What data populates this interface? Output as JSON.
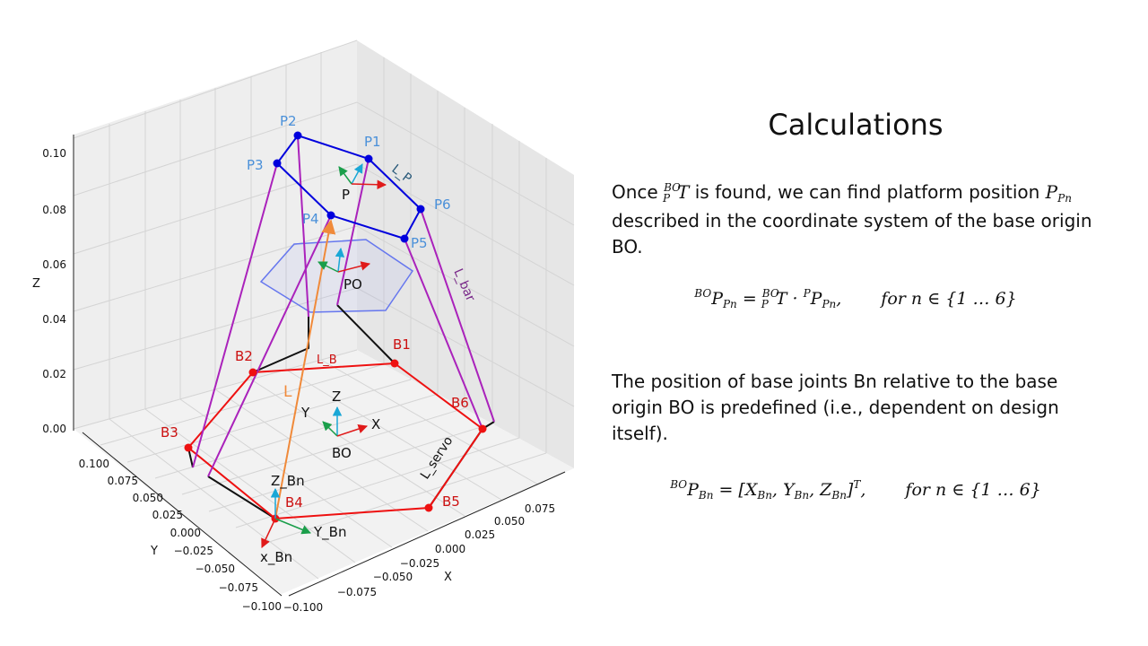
{
  "diagram": {
    "z_label": "Z",
    "y_label": "Y",
    "x_label": "X",
    "z_ticks": [
      "0.00",
      "0.02",
      "0.04",
      "0.06",
      "0.08",
      "0.10"
    ],
    "y_ticks": [
      "0.100",
      "0.075",
      "0.050",
      "0.025",
      "0.000",
      "−0.025",
      "−0.050",
      "−0.075",
      "−0.100"
    ],
    "x_ticks": [
      "−0.100",
      "−0.075",
      "−0.050",
      "−0.025",
      "0.000",
      "0.025",
      "0.050",
      "0.075"
    ],
    "platform_points": [
      "P1",
      "P2",
      "P3",
      "P4",
      "P5",
      "P6"
    ],
    "base_points": [
      "B1",
      "B2",
      "B3",
      "B4",
      "B5",
      "B6"
    ],
    "frame_labels": {
      "p": "P",
      "po": "PO",
      "bo": "BO",
      "bo_z": "Z",
      "bo_y": "Y",
      "bo_x": "X",
      "bn_z": "Z_Bn",
      "bn_y": "Y_Bn",
      "bn_x": "x_Bn"
    },
    "link_labels": {
      "l_p": "L_P",
      "l_bar": "L_bar",
      "l_b": "L_B",
      "l": "L",
      "l_servo": "L_servo"
    },
    "colors": {
      "platform": "#0000dd",
      "platform_label": "#4a90d9",
      "base": "#ee1111",
      "base_label": "#cc1111",
      "rod": "#aa22bb",
      "servo": "#111111",
      "leg_vector": "#f08a3a",
      "hexagon": "#6677ee",
      "z_arrow": "#1aa7d6",
      "y_arrow": "#1a9e4a",
      "x_arrow": "#e01a1a"
    }
  },
  "panel": {
    "title": "Calculations",
    "para1_a": "Once ",
    "para1_b": " is found, we can find platform position ",
    "para1_c": " described in the coordinate system of the base origin BO.",
    "para2": "The position of base joints Bn relative to the base origin BO is predefined (i.e., dependent on design itself).",
    "eq1_condition": "for n ∈ {1 … 6}",
    "eq2_condition": "for n ∈ {1 … 6}"
  }
}
